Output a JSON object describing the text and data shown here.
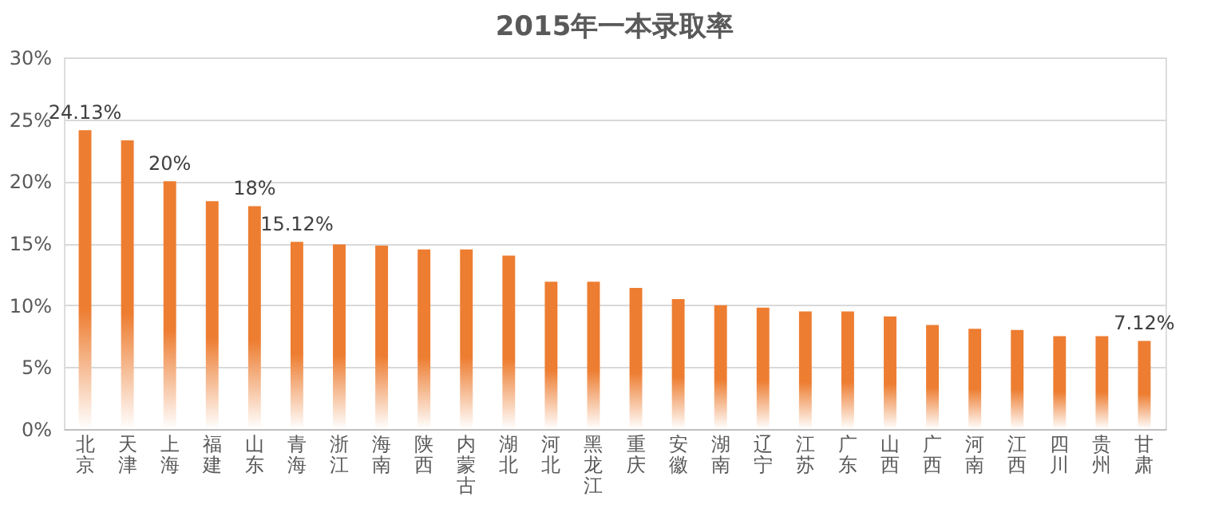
{
  "chart_data": {
    "type": "bar",
    "title": "2015年一本录取率",
    "categories": [
      "北京",
      "天津",
      "上海",
      "福建",
      "山东",
      "青海",
      "浙江",
      "海南",
      "陕西",
      "内蒙古",
      "湖北",
      "河北",
      "黑龙江",
      "重庆",
      "安徽",
      "湖南",
      "辽宁",
      "江苏",
      "广东",
      "山西",
      "广西",
      "河南",
      "江西",
      "四川",
      "贵州",
      "甘肃"
    ],
    "values": [
      24.13,
      23.3,
      20,
      18.4,
      18,
      15.12,
      14.9,
      14.8,
      14.5,
      14.5,
      14.0,
      11.9,
      11.9,
      11.4,
      10.5,
      10.0,
      9.8,
      9.5,
      9.5,
      9.1,
      8.4,
      8.1,
      8.0,
      7.5,
      7.5,
      7.12
    ],
    "value_labels": [
      "24.13%",
      null,
      "20%",
      null,
      "18%",
      "15.12%",
      null,
      null,
      null,
      null,
      null,
      null,
      null,
      null,
      null,
      null,
      null,
      null,
      null,
      null,
      null,
      null,
      null,
      null,
      null,
      "7.12%"
    ],
    "color": "#ed7d31",
    "ylim": [
      0,
      30
    ],
    "yticks": [
      {
        "value": 0,
        "label": "0%"
      },
      {
        "value": 5,
        "label": "5%"
      },
      {
        "value": 10,
        "label": "10%"
      },
      {
        "value": 15,
        "label": "15%"
      },
      {
        "value": 20,
        "label": "20%"
      },
      {
        "value": 25,
        "label": "25%"
      },
      {
        "value": 30,
        "label": "30%"
      }
    ],
    "grid": "y"
  }
}
